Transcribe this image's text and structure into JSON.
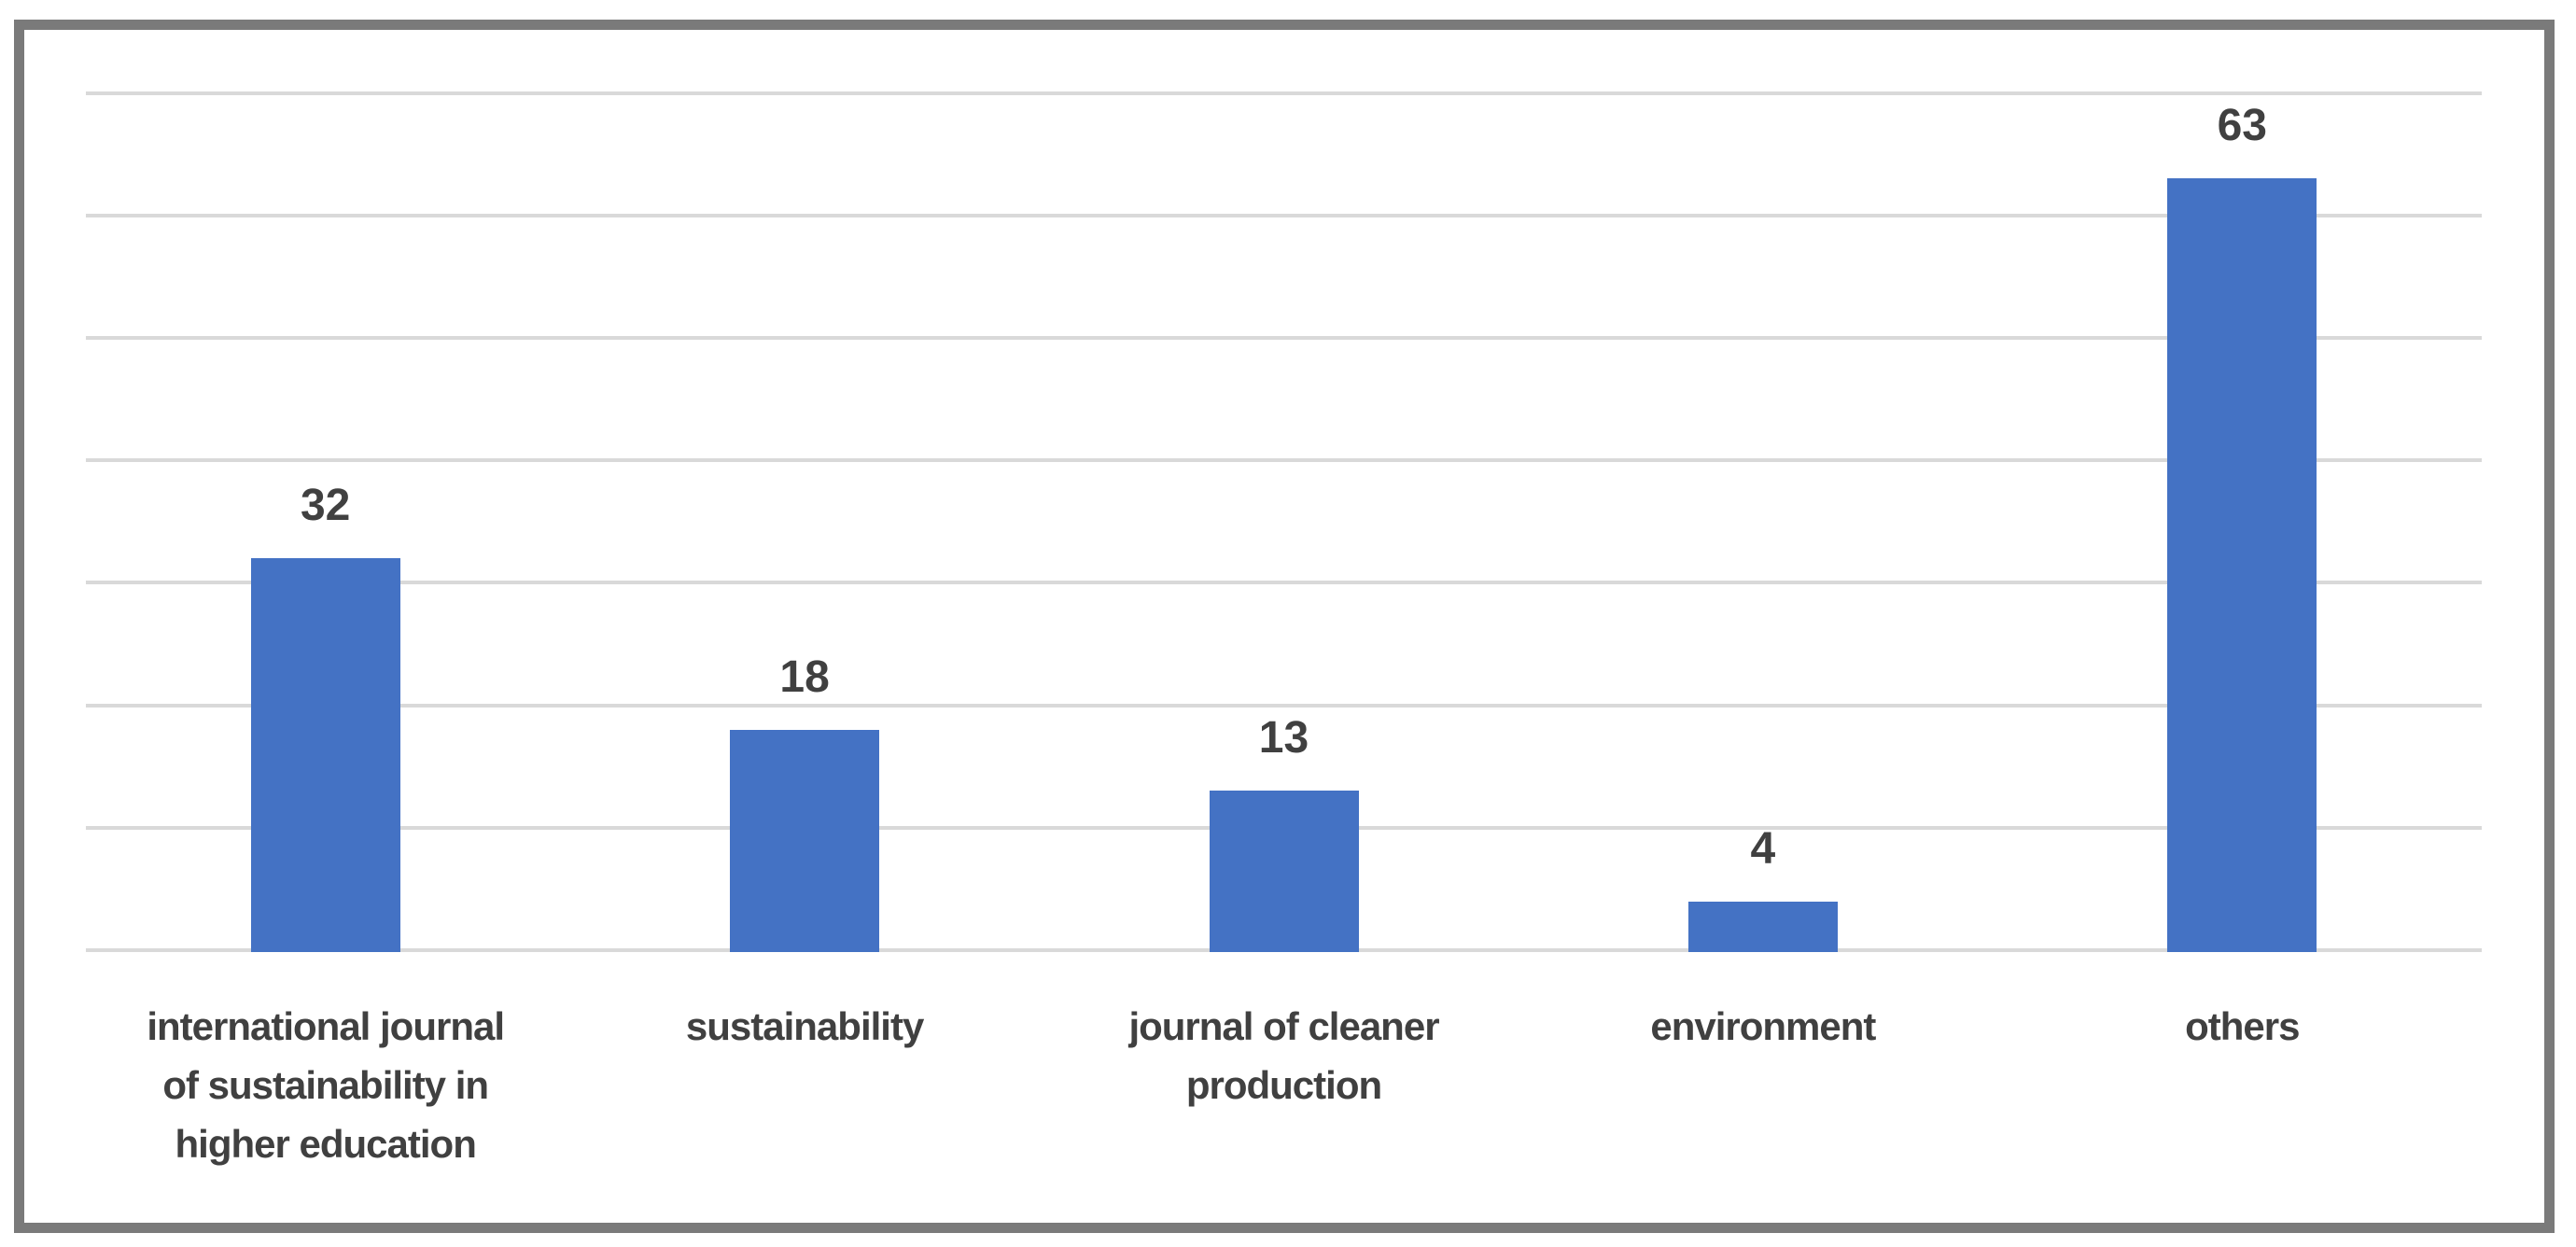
{
  "chart_data": {
    "type": "bar",
    "title": "",
    "xlabel": "",
    "ylabel": "",
    "categories": [
      "international journal of sustainability in higher education",
      "sustainability",
      "journal of cleaner production",
      "environment",
      "others"
    ],
    "category_lines": [
      [
        "international journal",
        "of sustainability in",
        "higher education"
      ],
      [
        "sustainability"
      ],
      [
        "journal of cleaner",
        "production"
      ],
      [
        "environment"
      ],
      [
        "others"
      ]
    ],
    "values": [
      32,
      18,
      13,
      4,
      63
    ],
    "data_labels": [
      "32",
      "18",
      "13",
      "4",
      "63"
    ],
    "ylim": [
      0,
      70
    ],
    "gridline_step": 10,
    "grid": "horizontal",
    "legend": "none",
    "y_tick_labels_visible": false,
    "colors": {
      "bar": "#4472C4",
      "gridline": "#D9D9D9",
      "axis_line": "#D9D9D9",
      "text": "#404040",
      "border": "#7A7A7A",
      "background": "#FFFFFF"
    }
  }
}
